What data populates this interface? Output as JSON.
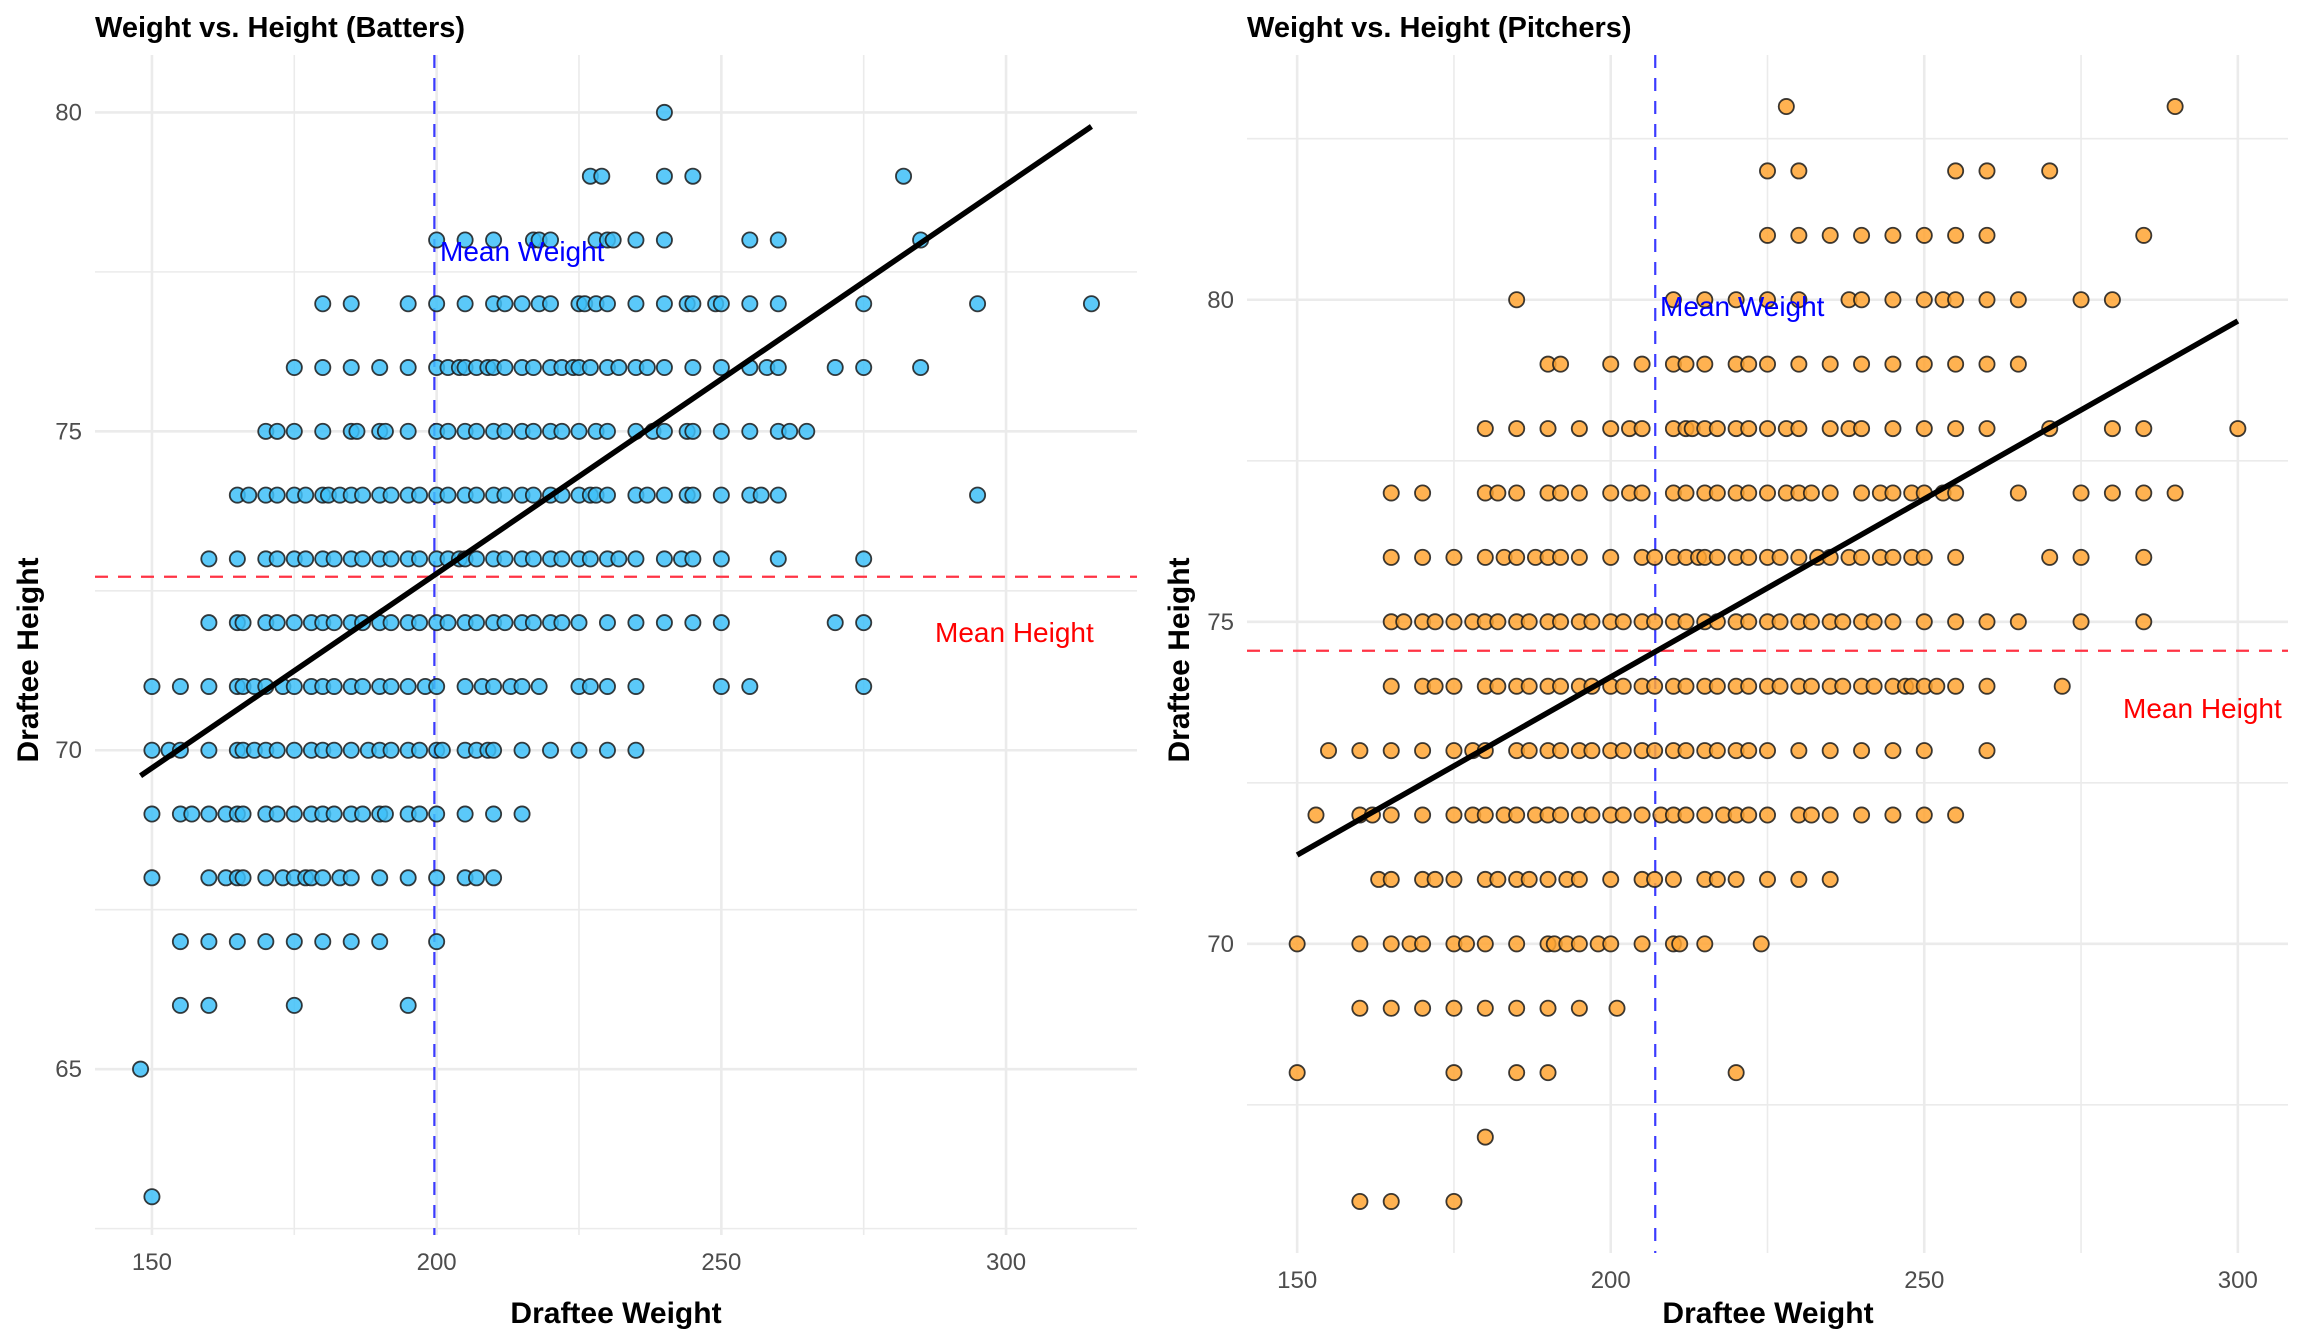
{
  "colors": {
    "batter_fill": "#3ec0f8",
    "pitcher_fill": "#ffa533",
    "point_stroke": "#1a1a1a",
    "regression": "#000000",
    "mean_weight_line": "#3b3bff",
    "mean_height_line": "#ff3344",
    "mean_weight_text": "#0000ff",
    "mean_height_text": "#ff0000",
    "grid": "#ebebeb"
  },
  "chart_data": [
    {
      "type": "scatter",
      "title": "Weight vs. Height (Batters)",
      "xlabel": "Draftee Weight",
      "ylabel": "Draftee Height",
      "xlim": [
        140,
        323
      ],
      "ylim": [
        62.4,
        80.9
      ],
      "x_ticks": [
        "150",
        "200",
        "250",
        "300"
      ],
      "y_ticks": [
        "65",
        "70",
        "75",
        "80"
      ],
      "grid": true,
      "mean_weight": 199.6,
      "mean_height": 72.72,
      "mean_weight_label": "Mean Weight",
      "mean_height_label": "Mean Height",
      "regression": {
        "x": [
          148,
          315
        ],
        "y": [
          69.6,
          79.78
        ]
      },
      "rows": [
        {
          "y": 80,
          "x": [
            240
          ]
        },
        {
          "y": 79,
          "x": [
            227,
            229,
            240,
            245,
            282
          ]
        },
        {
          "y": 78,
          "x": [
            200,
            205,
            210,
            217,
            218,
            220,
            228,
            230,
            231,
            235,
            240,
            255,
            260,
            285
          ]
        },
        {
          "y": 77,
          "x": [
            180,
            185,
            195,
            200,
            205,
            210,
            212,
            215,
            218,
            220,
            225,
            226,
            228,
            230,
            235,
            240,
            244,
            245,
            249,
            250,
            255,
            260,
            275,
            295,
            315
          ]
        },
        {
          "y": 76,
          "x": [
            175,
            180,
            185,
            190,
            195,
            200,
            202,
            204,
            205,
            207,
            209,
            210,
            212,
            215,
            217,
            220,
            222,
            224,
            225,
            227,
            230,
            232,
            235,
            237,
            240,
            245,
            250,
            255,
            258,
            260,
            270,
            275,
            285
          ]
        },
        {
          "y": 75,
          "x": [
            170,
            172,
            175,
            180,
            185,
            186,
            190,
            191,
            195,
            200,
            202,
            205,
            207,
            210,
            212,
            215,
            217,
            220,
            222,
            225,
            228,
            230,
            235,
            238,
            240,
            244,
            245,
            250,
            255,
            260,
            262,
            265
          ]
        },
        {
          "y": 74,
          "x": [
            165,
            167,
            170,
            172,
            175,
            177,
            180,
            181,
            183,
            185,
            187,
            190,
            192,
            195,
            197,
            200,
            202,
            205,
            207,
            210,
            212,
            215,
            217,
            220,
            222,
            225,
            227,
            228,
            230,
            235,
            237,
            240,
            244,
            245,
            250,
            255,
            257,
            260,
            295
          ]
        },
        {
          "y": 73,
          "x": [
            160,
            165,
            170,
            172,
            175,
            177,
            180,
            182,
            185,
            187,
            190,
            192,
            195,
            197,
            200,
            202,
            204,
            205,
            207,
            210,
            212,
            215,
            217,
            220,
            222,
            225,
            227,
            230,
            232,
            235,
            240,
            243,
            245,
            250,
            260,
            275
          ]
        },
        {
          "y": 72,
          "x": [
            160,
            165,
            166,
            170,
            172,
            175,
            178,
            180,
            182,
            185,
            187,
            190,
            192,
            195,
            197,
            200,
            202,
            205,
            207,
            210,
            212,
            215,
            217,
            220,
            222,
            225,
            230,
            235,
            240,
            245,
            250,
            270,
            275
          ]
        },
        {
          "y": 71,
          "x": [
            150,
            155,
            160,
            165,
            166,
            168,
            170,
            173,
            175,
            178,
            180,
            182,
            185,
            187,
            190,
            192,
            195,
            198,
            200,
            205,
            208,
            210,
            213,
            215,
            218,
            225,
            227,
            230,
            235,
            250,
            255,
            275
          ]
        },
        {
          "y": 70,
          "x": [
            150,
            153,
            155,
            160,
            165,
            166,
            168,
            170,
            172,
            175,
            178,
            180,
            182,
            185,
            188,
            190,
            192,
            195,
            197,
            200,
            201,
            205,
            207,
            209,
            210,
            215,
            220,
            225,
            230,
            235
          ]
        },
        {
          "y": 69,
          "x": [
            150,
            155,
            157,
            160,
            163,
            165,
            166,
            170,
            172,
            175,
            178,
            180,
            182,
            185,
            187,
            190,
            191,
            195,
            197,
            200,
            205,
            210,
            215
          ]
        },
        {
          "y": 68,
          "x": [
            150,
            160,
            163,
            165,
            166,
            170,
            173,
            175,
            177,
            178,
            180,
            183,
            185,
            190,
            195,
            200,
            205,
            207,
            210
          ]
        },
        {
          "y": 67,
          "x": [
            155,
            160,
            165,
            170,
            175,
            180,
            185,
            190,
            200
          ]
        },
        {
          "y": 66,
          "x": [
            155,
            160,
            175,
            195
          ]
        },
        {
          "y": 65,
          "x": [
            148
          ]
        },
        {
          "y": 63,
          "x": [
            150
          ]
        }
      ]
    },
    {
      "type": "scatter",
      "title": "Weight vs. Height (Pitchers)",
      "xlabel": "Draftee Weight",
      "ylabel": "Draftee Height",
      "xlim": [
        142,
        308
      ],
      "ylim": [
        65.2,
        83.8
      ],
      "x_ticks": [
        "150",
        "200",
        "250",
        "300"
      ],
      "y_ticks": [
        "70",
        "75",
        "80"
      ],
      "grid": true,
      "mean_weight": 207.1,
      "mean_height": 74.55,
      "mean_weight_label": "Mean Weight",
      "mean_height_label": "Mean Height",
      "regression": {
        "x": [
          150,
          300
        ],
        "y": [
          71.38,
          79.67
        ]
      },
      "rows": [
        {
          "y": 83,
          "x": [
            228,
            290
          ]
        },
        {
          "y": 82,
          "x": [
            225,
            230,
            255,
            260,
            270
          ]
        },
        {
          "y": 81,
          "x": [
            225,
            230,
            235,
            240,
            245,
            250,
            255,
            260,
            285
          ]
        },
        {
          "y": 80,
          "x": [
            185,
            210,
            215,
            220,
            225,
            230,
            238,
            240,
            245,
            250,
            253,
            255,
            260,
            265,
            275,
            280
          ]
        },
        {
          "y": 79,
          "x": [
            190,
            192,
            200,
            205,
            210,
            212,
            215,
            220,
            222,
            225,
            230,
            235,
            240,
            245,
            250,
            255,
            260,
            265
          ]
        },
        {
          "y": 78,
          "x": [
            180,
            185,
            190,
            195,
            200,
            203,
            205,
            210,
            212,
            213,
            215,
            217,
            220,
            222,
            225,
            228,
            230,
            235,
            238,
            240,
            245,
            250,
            255,
            260,
            270,
            280,
            285,
            300
          ]
        },
        {
          "y": 77,
          "x": [
            165,
            170,
            180,
            182,
            185,
            190,
            192,
            195,
            200,
            203,
            205,
            210,
            212,
            215,
            217,
            220,
            222,
            225,
            228,
            230,
            232,
            235,
            240,
            243,
            245,
            248,
            250,
            253,
            255,
            265,
            275,
            280,
            285,
            290
          ]
        },
        {
          "y": 76,
          "x": [
            165,
            170,
            175,
            180,
            183,
            185,
            188,
            190,
            192,
            195,
            200,
            205,
            207,
            210,
            212,
            214,
            215,
            217,
            220,
            222,
            225,
            227,
            230,
            233,
            235,
            238,
            240,
            243,
            245,
            248,
            250,
            255,
            270,
            275,
            285
          ]
        },
        {
          "y": 75,
          "x": [
            165,
            167,
            170,
            172,
            175,
            178,
            180,
            182,
            185,
            187,
            190,
            192,
            195,
            197,
            200,
            202,
            205,
            207,
            210,
            212,
            215,
            217,
            220,
            222,
            225,
            227,
            230,
            232,
            235,
            237,
            240,
            242,
            245,
            250,
            255,
            260,
            265,
            275,
            285
          ]
        },
        {
          "y": 74,
          "x": [
            165,
            170,
            172,
            175,
            180,
            182,
            185,
            187,
            190,
            192,
            195,
            197,
            200,
            202,
            205,
            207,
            210,
            212,
            215,
            217,
            220,
            222,
            225,
            227,
            230,
            232,
            235,
            237,
            240,
            242,
            245,
            247,
            248,
            250,
            252,
            255,
            260,
            272
          ]
        },
        {
          "y": 73,
          "x": [
            155,
            160,
            165,
            170,
            175,
            178,
            180,
            185,
            187,
            190,
            192,
            195,
            197,
            200,
            202,
            205,
            207,
            210,
            212,
            215,
            217,
            220,
            222,
            225,
            230,
            235,
            240,
            245,
            250,
            260
          ]
        },
        {
          "y": 72,
          "x": [
            153,
            160,
            162,
            165,
            170,
            175,
            178,
            180,
            183,
            185,
            188,
            190,
            192,
            195,
            197,
            200,
            202,
            205,
            208,
            210,
            212,
            215,
            218,
            220,
            222,
            225,
            230,
            232,
            235,
            240,
            245,
            250,
            255
          ]
        },
        {
          "y": 71,
          "x": [
            163,
            165,
            170,
            172,
            175,
            180,
            182,
            185,
            187,
            190,
            193,
            195,
            200,
            205,
            207,
            210,
            215,
            217,
            220,
            225,
            230,
            235
          ]
        },
        {
          "y": 70,
          "x": [
            150,
            160,
            165,
            168,
            170,
            175,
            177,
            180,
            185,
            190,
            191,
            193,
            195,
            198,
            200,
            205,
            210,
            211,
            215,
            224
          ]
        },
        {
          "y": 69,
          "x": [
            160,
            165,
            170,
            175,
            180,
            185,
            190,
            195,
            201
          ]
        },
        {
          "y": 68,
          "x": [
            150,
            175,
            185,
            190,
            220
          ]
        },
        {
          "y": 67,
          "x": [
            180
          ]
        },
        {
          "y": 66,
          "x": [
            160,
            165,
            175
          ]
        }
      ]
    }
  ]
}
